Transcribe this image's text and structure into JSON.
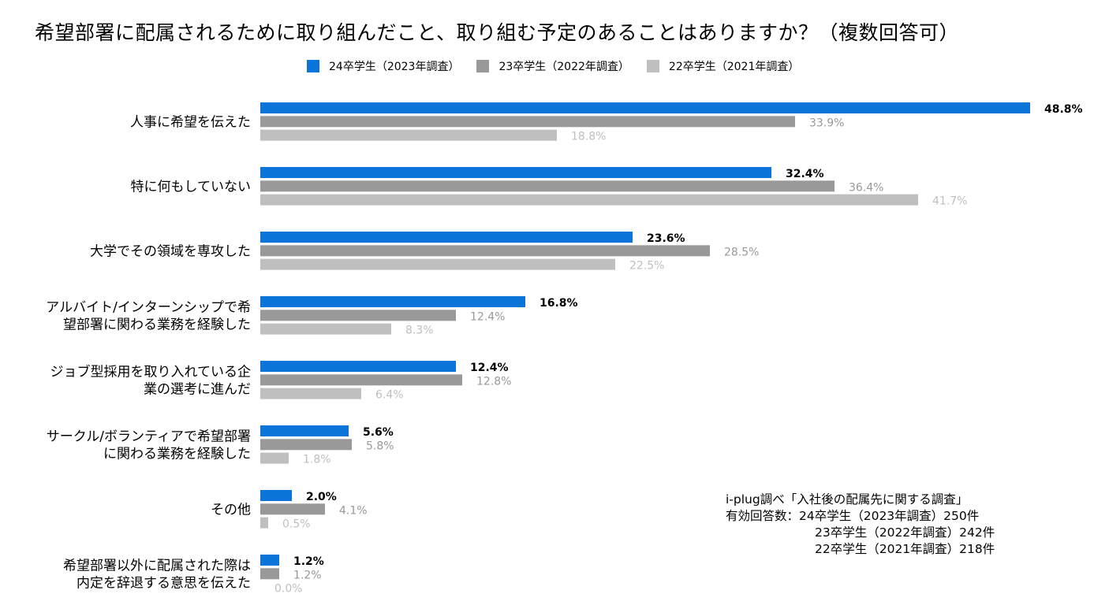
{
  "chart_data": {
    "type": "bar",
    "orientation": "horizontal",
    "title": "希望部署に配属されるために取り組んだこと、取り組む予定のあることはありますか？（複数回答可）",
    "xlim": [
      0,
      50
    ],
    "grid": false,
    "legend_position": "top",
    "categories": [
      [
        "人事に希望を伝えた"
      ],
      [
        "特に何もしていない"
      ],
      [
        "大学でその領域を専攻した"
      ],
      [
        "アルバイト/インターンシップで希",
        "望部署に関わる業務を経験した"
      ],
      [
        "ジョブ型採用を取り入れている企",
        "業の選考に進んだ"
      ],
      [
        "サークル/ボランティアで希望部署",
        "に関わる業務を経験した"
      ],
      [
        "その他"
      ],
      [
        "希望部署以外に配属された際は",
        "内定を辞退する意思を伝えた"
      ]
    ],
    "series": [
      {
        "name": "24卒学生（2023年調査）",
        "color": "#0a74d9",
        "label_color": "#000000",
        "label_bold": true,
        "values": [
          48.8,
          32.4,
          23.6,
          16.8,
          12.4,
          5.6,
          2.0,
          1.2
        ],
        "labels": [
          "48.8%",
          "32.4%",
          "23.6%",
          "16.8%",
          "12.4%",
          "5.6%",
          "2.0%",
          "1.2%"
        ]
      },
      {
        "name": "23卒学生（2022年調査）",
        "color": "#999999",
        "label_color": "#999999",
        "label_bold": false,
        "values": [
          33.9,
          36.4,
          28.5,
          12.4,
          12.8,
          5.8,
          4.1,
          1.2
        ],
        "labels": [
          "33.9%",
          "36.4%",
          "28.5%",
          "12.4%",
          "12.8%",
          "5.8%",
          "4.1%",
          "1.2%"
        ]
      },
      {
        "name": "22卒学生（2021年調査）",
        "color": "#bfbfbf",
        "label_color": "#bfbfbf",
        "label_bold": false,
        "values": [
          18.8,
          41.7,
          22.5,
          8.3,
          6.4,
          1.8,
          0.5,
          0.0
        ],
        "labels": [
          "18.8%",
          "41.7%",
          "22.5%",
          "8.3%",
          "6.4%",
          "1.8%",
          "0.5%",
          "0.0%"
        ]
      }
    ]
  },
  "source": {
    "line1": "i-plug調べ「入社後の配属先に関する調査」",
    "line2": "有効回答数：24卒学生（2023年調査）250件",
    "line3": "23卒学生（2022年調査）242件",
    "line4": "22卒学生（2021年調査）218件"
  }
}
